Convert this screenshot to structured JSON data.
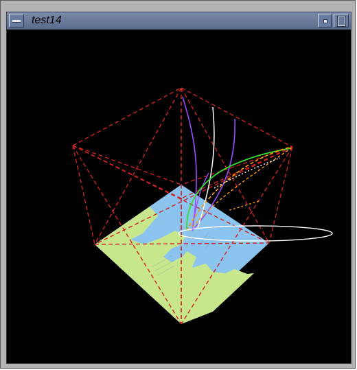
{
  "window": {
    "title": "test14",
    "menu_icon": "window-menu-icon",
    "minimize_icon": "minimize-icon",
    "maximize_icon": "maximize-icon"
  },
  "scene": {
    "background_color": "#000000",
    "frame_color": "#cc2222",
    "map_water_color": "#8cc4f0",
    "map_land_color": "#c8e68c",
    "trajectory_colors": [
      "#9a4dff",
      "#ffffff",
      "#33dd33",
      "#ff9900"
    ],
    "ellipse_color": "#ffffff"
  }
}
